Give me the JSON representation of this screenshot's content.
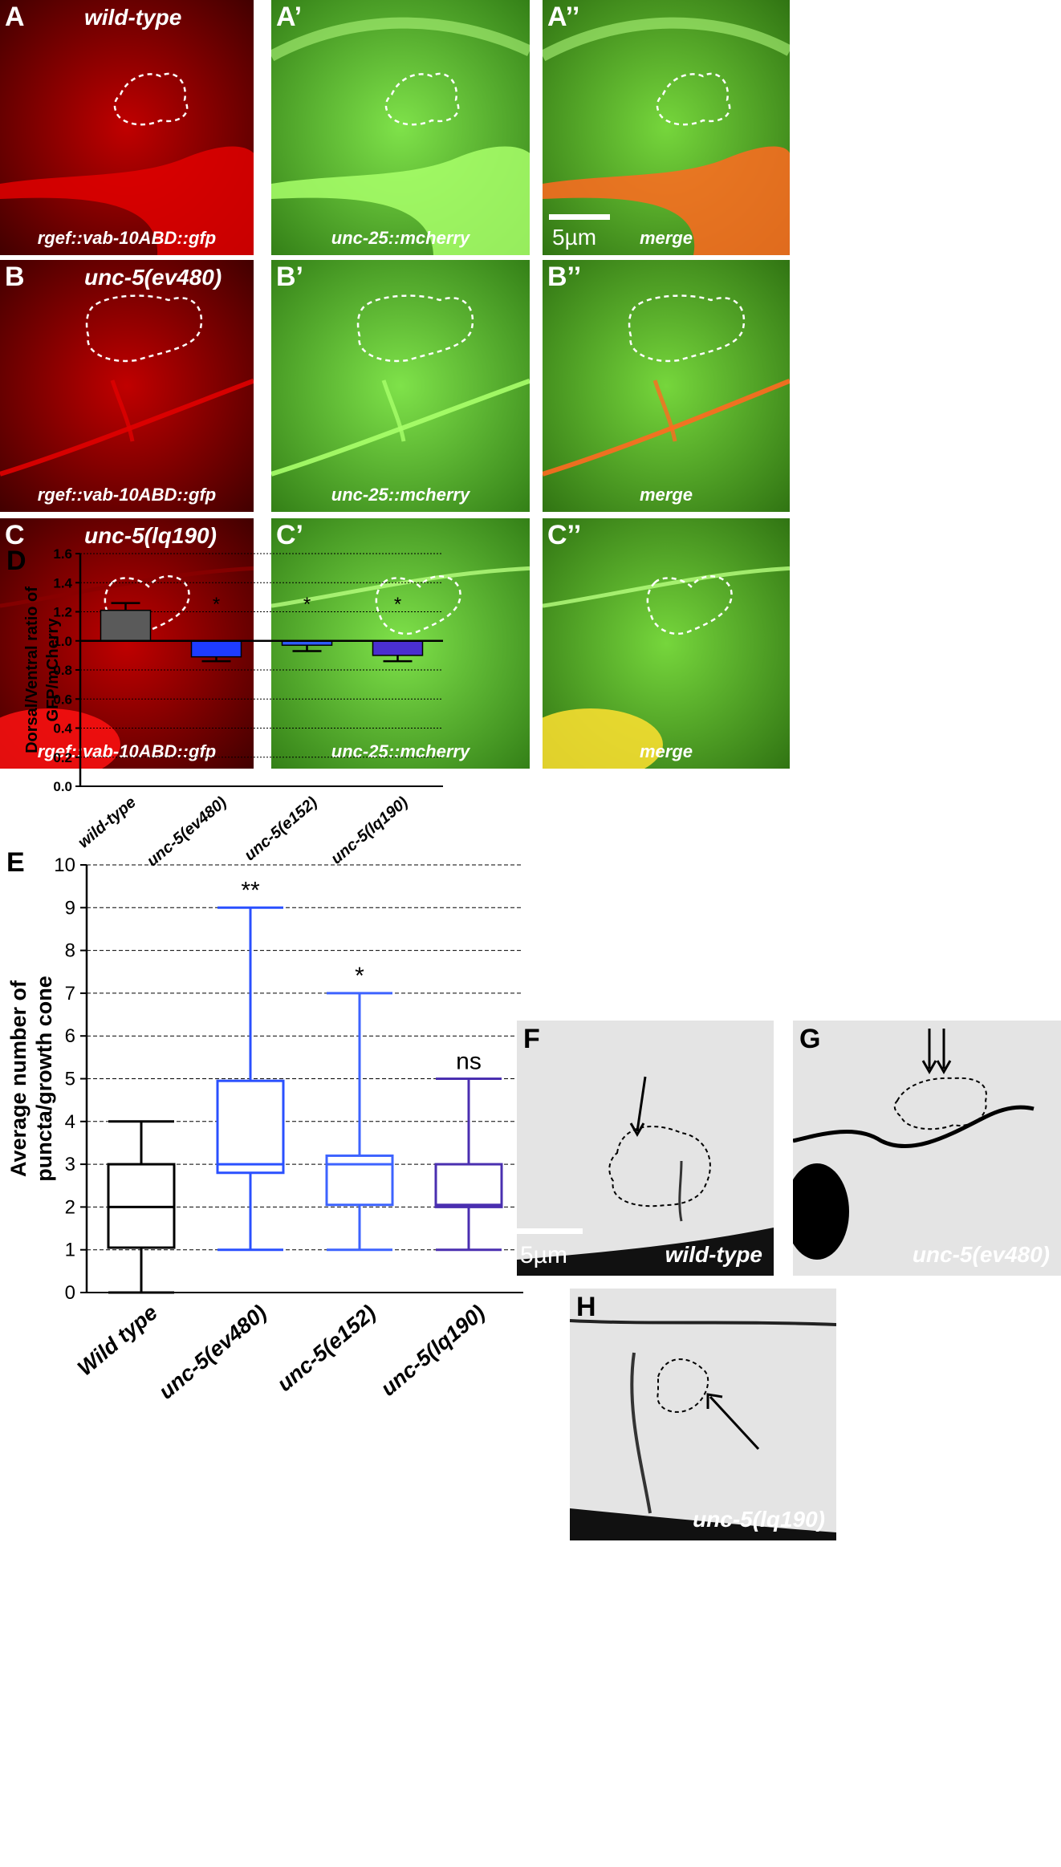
{
  "micrographs": [
    {
      "id": "A",
      "label": "A",
      "title": "wild-type",
      "caption": "rgef::vab-10ABD::gfp",
      "kind": "red"
    },
    {
      "id": "A1",
      "label": "A’",
      "title": "",
      "caption": "unc-25::mcherry",
      "kind": "green"
    },
    {
      "id": "A2",
      "label": "A’’",
      "title": "",
      "caption": "merge",
      "kind": "merge",
      "scale": "5µm"
    },
    {
      "id": "B",
      "label": "B",
      "title": "unc-5(ev480)",
      "caption": "rgef::vab-10ABD::gfp",
      "kind": "red"
    },
    {
      "id": "B1",
      "label": "B’",
      "title": "",
      "caption": "unc-25::mcherry",
      "kind": "green"
    },
    {
      "id": "B2",
      "label": "B’’",
      "title": "",
      "caption": "merge",
      "kind": "merge"
    },
    {
      "id": "C",
      "label": "C",
      "title": "unc-5(lq190)",
      "caption": "rgef::vab-10ABD::gfp",
      "kind": "red"
    },
    {
      "id": "C1",
      "label": "C’",
      "title": "",
      "caption": "unc-25::mcherry",
      "kind": "green"
    },
    {
      "id": "C2",
      "label": "C’’",
      "title": "",
      "caption": "merge",
      "kind": "merge"
    }
  ],
  "gray_panels": [
    {
      "id": "F",
      "label": "F",
      "caption": "wild-type",
      "scale": "5µm"
    },
    {
      "id": "G",
      "label": "G",
      "caption": "unc-5(ev480)"
    },
    {
      "id": "H",
      "label": "H",
      "caption": "unc-5(lq190)"
    }
  ],
  "colors": {
    "fluor_red": "#e00000",
    "fluor_green": "#5ee03a",
    "bar_wildtype": "#5a5a5a",
    "bar_ev480": "#1e3cff",
    "bar_e152": "#2f5bff",
    "bar_lq190": "#4a2fd0",
    "box_wildtype": "#000000",
    "box_ev480": "#2a50ff",
    "box_e152": "#3d63ff",
    "box_lq190": "#4a2fb0"
  },
  "chart_data": [
    {
      "panel_label": "D",
      "type": "bar",
      "ylabel": "Dorsal/Ventral ratio of GFP/mCherry",
      "ylim": [
        0,
        1.6
      ],
      "yticks": [
        "0.0",
        "0.2",
        "0.4",
        "0.6",
        "0.8",
        "1.0",
        "1.2",
        "1.4",
        "1.6"
      ],
      "reference_line": 1.0,
      "grid": "dotted horizontal",
      "categories": [
        "wild-type",
        "unc-5(ev480)",
        "unc-5(e152)",
        "unc-5(lq190)"
      ],
      "values": [
        1.21,
        0.89,
        0.97,
        0.9
      ],
      "errors": [
        0.05,
        0.03,
        0.04,
        0.04
      ],
      "annotations": [
        "",
        "*",
        "*",
        "*"
      ]
    },
    {
      "panel_label": "E",
      "type": "box",
      "ylabel": "Average number of puncta/growth cone",
      "ylim": [
        0,
        10
      ],
      "yticks": [
        "0",
        "1",
        "2",
        "3",
        "4",
        "5",
        "6",
        "7",
        "8",
        "9",
        "10"
      ],
      "grid": "dashed horizontal",
      "categories": [
        "Wild type",
        "unc-5(ev480)",
        "unc-5(e152)",
        "unc-5(lq190)"
      ],
      "boxes": [
        {
          "min": 0,
          "q1": 1.05,
          "median": 2.0,
          "q3": 3.0,
          "max": 4
        },
        {
          "min": 1,
          "q1": 2.8,
          "median": 3.0,
          "q3": 4.95,
          "max": 9
        },
        {
          "min": 1,
          "q1": 2.05,
          "median": 3.0,
          "q3": 3.2,
          "max": 7
        },
        {
          "min": 1,
          "q1": 2.0,
          "median": 2.05,
          "q3": 3.0,
          "max": 5
        }
      ],
      "annotations": [
        "",
        "**",
        "*",
        "ns"
      ]
    }
  ]
}
